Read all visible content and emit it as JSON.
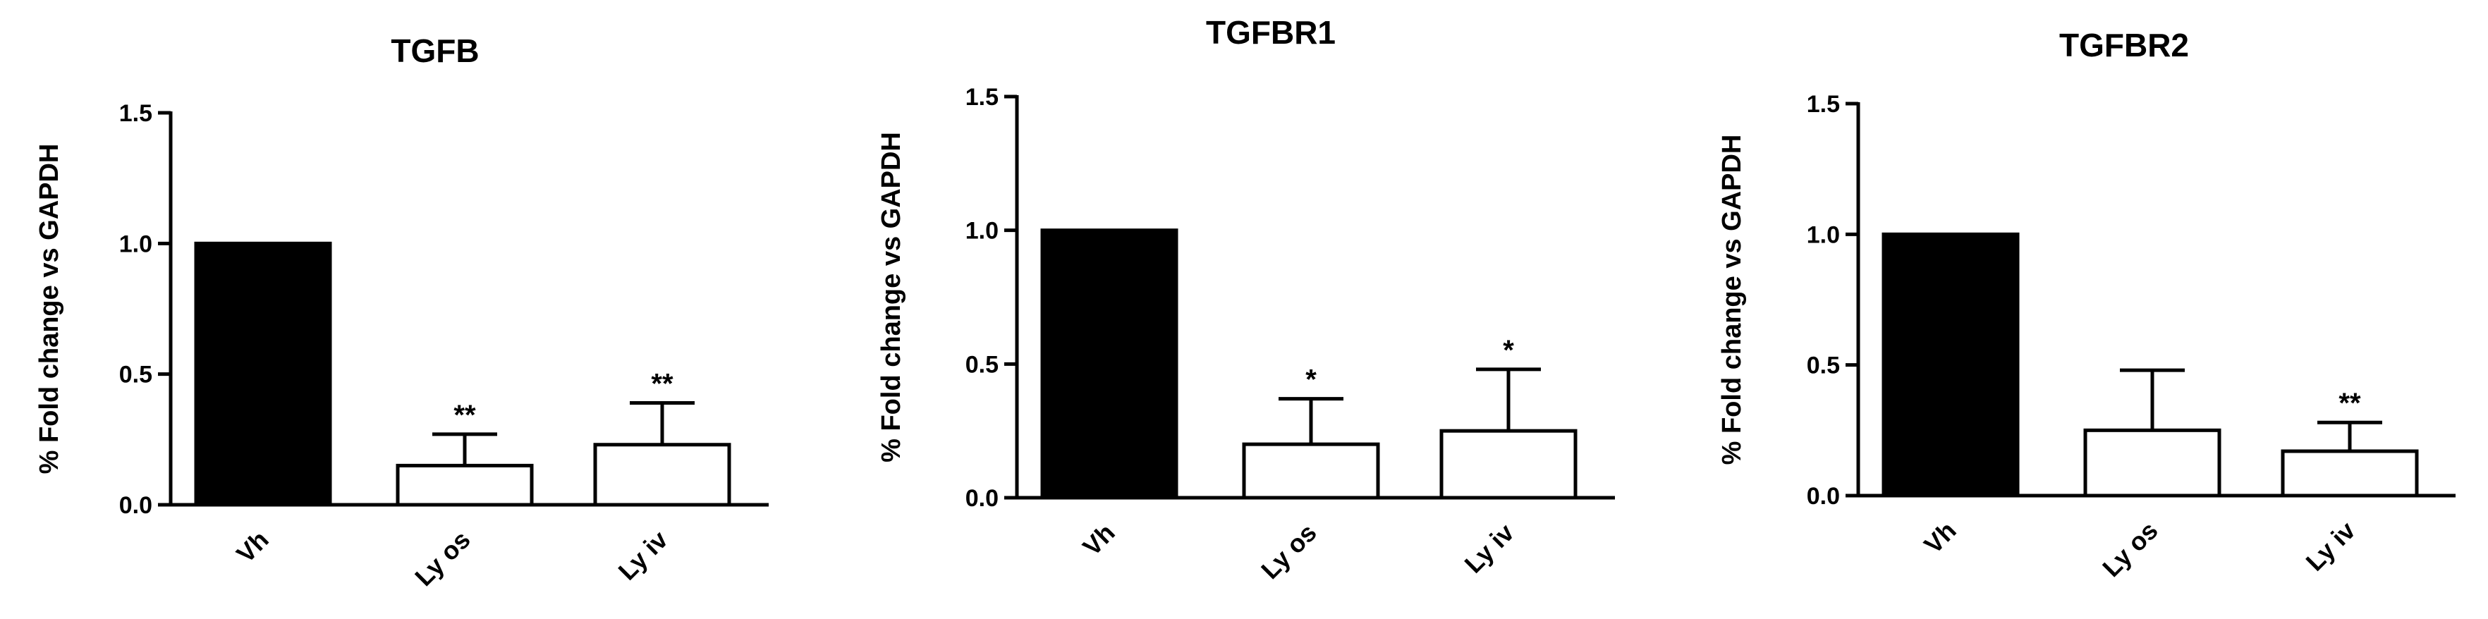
{
  "chart_data": [
    {
      "type": "bar",
      "title": "TGFB",
      "ylabel": "% Fold change vs GAPDH",
      "xlabel": "",
      "categories": [
        "Vh",
        "Ly os",
        "Ly iv"
      ],
      "values": [
        1.0,
        0.15,
        0.23
      ],
      "errors": [
        0.0,
        0.12,
        0.16
      ],
      "significance": [
        "",
        "**",
        "**"
      ],
      "fill": [
        "#000000",
        "#ffffff",
        "#ffffff"
      ],
      "ylim": [
        0,
        1.5
      ],
      "yticks": [
        "0.0",
        "0.5",
        "1.0",
        "1.5"
      ],
      "grid": false
    },
    {
      "type": "bar",
      "title": "TGFBR1",
      "ylabel": "% Fold change vs GAPDH",
      "xlabel": "",
      "categories": [
        "Vh",
        "Ly os",
        "Ly iv"
      ],
      "values": [
        1.0,
        0.2,
        0.25
      ],
      "errors": [
        0.0,
        0.17,
        0.23
      ],
      "significance": [
        "",
        "*",
        "*"
      ],
      "fill": [
        "#000000",
        "#ffffff",
        "#ffffff"
      ],
      "ylim": [
        0,
        1.5
      ],
      "yticks": [
        "0.0",
        "0.5",
        "1.0",
        "1.5"
      ],
      "grid": false
    },
    {
      "type": "bar",
      "title": "TGFBR2",
      "ylabel": "% Fold change vs GAPDH",
      "xlabel": "",
      "categories": [
        "Vh",
        "Ly os",
        "Ly iv"
      ],
      "values": [
        1.0,
        0.25,
        0.17
      ],
      "errors": [
        0.0,
        0.23,
        0.11
      ],
      "significance": [
        "",
        "",
        "**"
      ],
      "fill": [
        "#000000",
        "#ffffff",
        "#ffffff"
      ],
      "ylim": [
        0,
        1.5
      ],
      "yticks": [
        "0.0",
        "0.5",
        "1.0",
        "1.5"
      ],
      "grid": false
    }
  ]
}
